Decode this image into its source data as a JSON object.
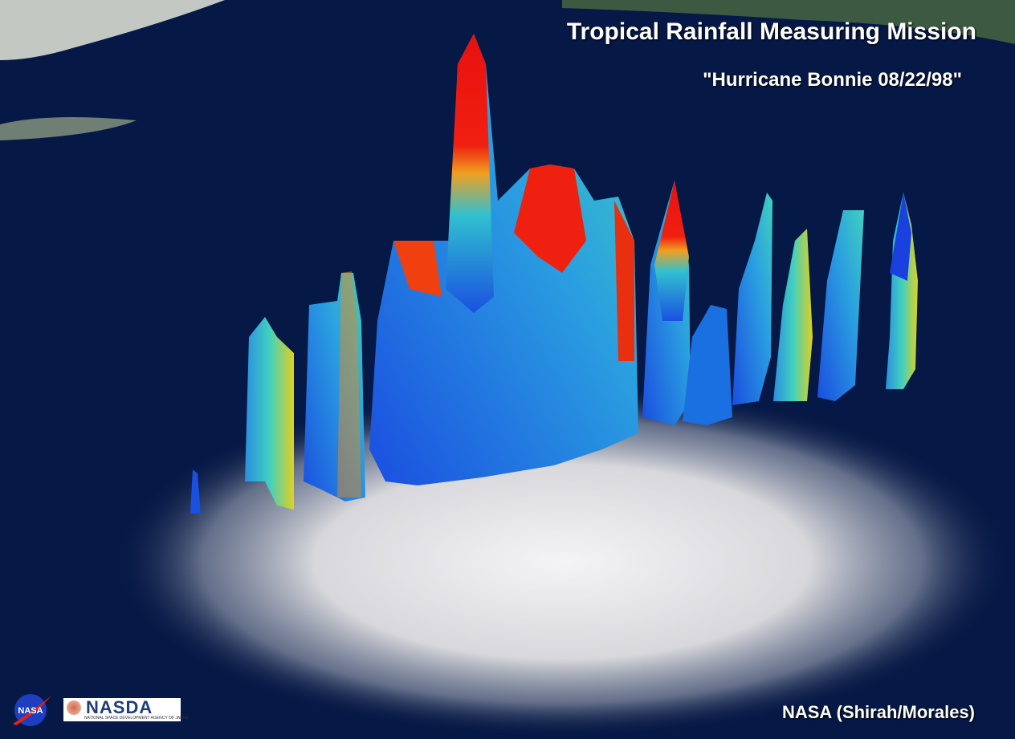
{
  "title": "Tropical Rainfall Measuring Mission",
  "subtitle": "\"Hurricane Bonnie 08/22/98\"",
  "credit": "NASA (Shirah/Morales)",
  "logos": {
    "nasa": "NASA",
    "nasda": "NASDA",
    "nasda_tagline": "NATIONAL SPACE DEVELOPMENT AGENCY OF JAPAN"
  },
  "colors": {
    "ocean": "#061845",
    "cloud": "#e8e8ec",
    "rain_low": "#1a3fe0",
    "rain_mid": "#2ec0d8",
    "rain_high": "#f01010"
  }
}
